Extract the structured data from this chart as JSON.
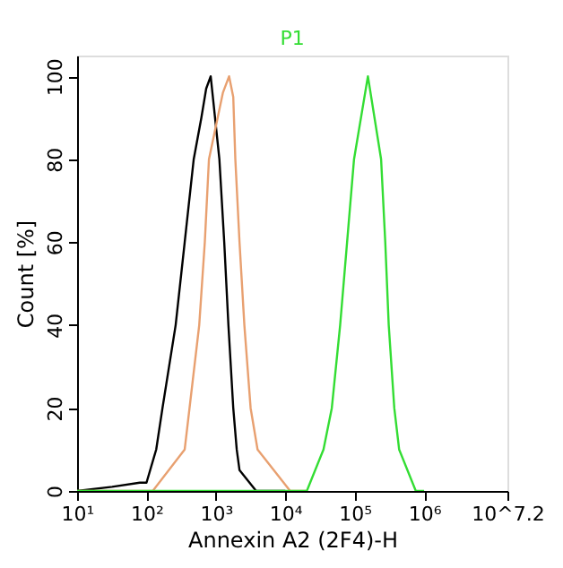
{
  "chart_data": {
    "type": "line",
    "xlabel": "Annexin A2 (2F4)-H",
    "ylabel": "Count [%]",
    "log": "x",
    "xlim": [
      10,
      15848932
    ],
    "xticks": [
      {
        "value": 10,
        "label": "10¹"
      },
      {
        "value": 100,
        "label": "10²"
      },
      {
        "value": 1000,
        "label": "10³"
      },
      {
        "value": 10000,
        "label": "10⁴"
      },
      {
        "value": 100000,
        "label": "10⁵"
      },
      {
        "value": 1000000,
        "label": "10⁶"
      },
      {
        "value": 15848932,
        "label": "10^7.2"
      }
    ],
    "ylim": [
      0,
      105
    ],
    "yticks": [
      0,
      20,
      40,
      60,
      80,
      100
    ],
    "grid": false,
    "legend": false,
    "marker": "none",
    "line_style": "solid",
    "series": [
      {
        "color": "#000000",
        "x": [
          10,
          32,
          80,
          100,
          138,
          170,
          263,
          355,
          479,
          617,
          724,
          841,
          1122,
          1318,
          1514,
          1778,
          1995,
          2188,
          3802,
          10000
        ],
        "values": [
          0,
          1,
          2,
          2,
          10,
          20,
          40,
          60,
          80,
          90,
          97,
          100,
          80,
          60,
          40,
          20,
          10,
          5,
          0,
          0
        ]
      },
      {
        "color": "#e8a070",
        "x": [
          10,
          123,
          355,
          417,
          575,
          692,
          794,
          1259,
          1549,
          1778,
          1905,
          2188,
          2570,
          3162,
          3981,
          11749,
          20000
        ],
        "values": [
          0,
          0,
          10,
          20,
          40,
          60,
          80,
          96,
          100,
          95,
          80,
          60,
          40,
          20,
          10,
          0,
          0
        ]
      },
      {
        "name": "P1",
        "color": "#33dd33",
        "x": [
          10,
          20417,
          35481,
          46774,
          61660,
          77625,
          97724,
          154882,
          239883,
          275423,
          309030,
          371535,
          436516,
          758578,
          1000000
        ],
        "values": [
          0,
          0,
          10,
          20,
          40,
          60,
          80,
          100,
          80,
          60,
          40,
          20,
          10,
          0,
          0
        ]
      }
    ]
  }
}
